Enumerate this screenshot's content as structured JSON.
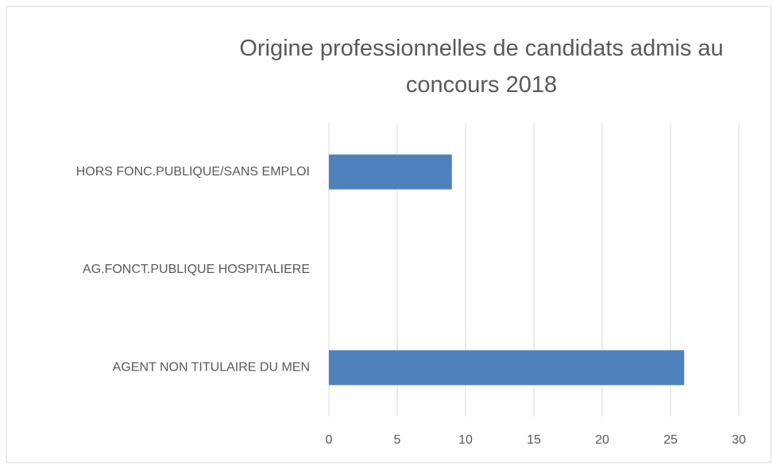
{
  "chart_data": {
    "type": "barh",
    "title": "Origine professionnelles de candidats admis au concours 2018",
    "categories": [
      "HORS FONC.PUBLIQUE/SANS EMPLOI",
      "AG.FONCT.PUBLIQUE HOSPITALIERE",
      "AGENT NON TITULAIRE DU MEN"
    ],
    "values": [
      9,
      0,
      26
    ],
    "color": "#4f81bd",
    "xlim": [
      0,
      30
    ],
    "xticks": [
      0,
      5,
      10,
      15,
      20,
      25,
      30
    ],
    "grid": true
  }
}
